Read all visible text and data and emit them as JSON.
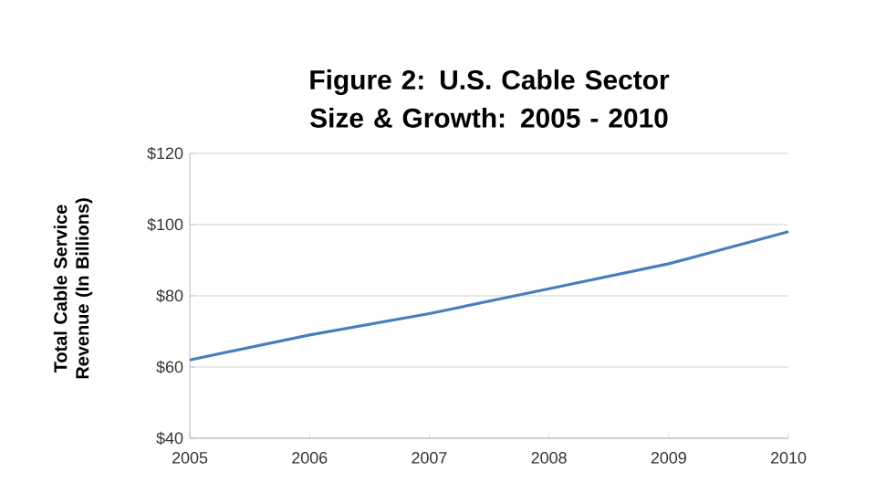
{
  "chart_data": {
    "type": "line",
    "title": "Figure 2:  U.S. Cable Sector Size & Growth: 2005 - 2010",
    "ylabel": "Total Cable Service Revenue (In Billions)",
    "categories": [
      "2005",
      "2006",
      "2007",
      "2008",
      "2009",
      "2010"
    ],
    "series": [
      {
        "color": "#4a7ebb",
        "values": [
          62,
          69,
          75,
          82,
          89,
          98
        ]
      }
    ],
    "ylim": [
      40,
      120
    ],
    "yticks": [
      {
        "value": 40,
        "label": "$40"
      },
      {
        "value": 60,
        "label": "$60"
      },
      {
        "value": 80,
        "label": "$80"
      },
      {
        "value": 100,
        "label": "$100"
      },
      {
        "value": 120,
        "label": "$120"
      }
    ],
    "grid": "y",
    "marker": "none",
    "line_style": "solid"
  }
}
